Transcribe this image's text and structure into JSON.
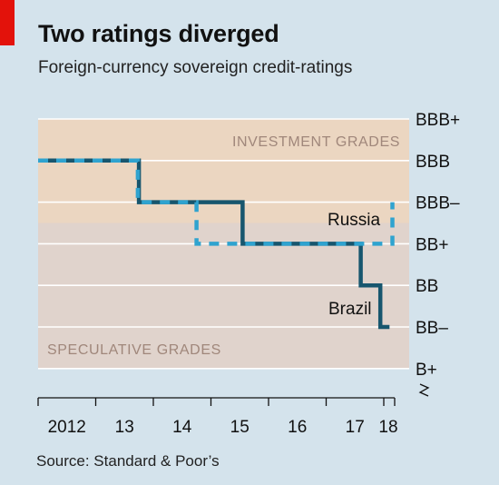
{
  "title": "Two ratings diverged",
  "subtitle": "Foreign-currency sovereign credit-ratings",
  "source": "Source: Standard & Poor’s",
  "colors": {
    "background": "#d4e3ec",
    "investment_band": "#ebd6c1",
    "speculative_band": "#e0d3cc",
    "gridline": "#ffffff",
    "brazil": "#17566e",
    "russia": "#2fa3cf",
    "band_label": "#a0877b",
    "brand_tag": "#e3120b"
  },
  "chart_data": {
    "type": "line",
    "title": "Two ratings diverged",
    "subtitle": "Foreign-currency sovereign credit-ratings",
    "x_tick_labels": [
      "2012",
      "13",
      "14",
      "15",
      "16",
      "17",
      "18"
    ],
    "xlim": [
      2012,
      2018.2
    ],
    "y_categories": [
      "B+",
      "BB–",
      "BB",
      "BB+",
      "BBB–",
      "BBB",
      "BBB+"
    ],
    "y_axis_position": "right",
    "grid": true,
    "bands": [
      {
        "label": "INVESTMENT GRADES",
        "from": "BBB–",
        "to": "BBB+"
      },
      {
        "label": "SPECULATIVE GRADES",
        "from": "B+",
        "to": "BB+"
      }
    ],
    "series": [
      {
        "name": "Brazil",
        "color_key": "brazil",
        "steps": [
          {
            "x": 2012.0,
            "rating": "BBB"
          },
          {
            "x": 2013.75,
            "rating": "BBB–"
          },
          {
            "x": 2015.55,
            "rating": "BB+"
          },
          {
            "x": 2017.6,
            "rating": "BB"
          },
          {
            "x": 2017.94,
            "rating": "BB–"
          }
        ],
        "end_x": 2018.1
      },
      {
        "name": "Russia",
        "color_key": "russia",
        "steps": [
          {
            "x": 2012.0,
            "rating": "BBB"
          },
          {
            "x": 2013.73,
            "rating": "BBB–"
          },
          {
            "x": 2014.75,
            "rating": "BB+"
          },
          {
            "x": 2018.15,
            "rating": "BBB–"
          }
        ],
        "end_x": 2018.15
      }
    ]
  }
}
